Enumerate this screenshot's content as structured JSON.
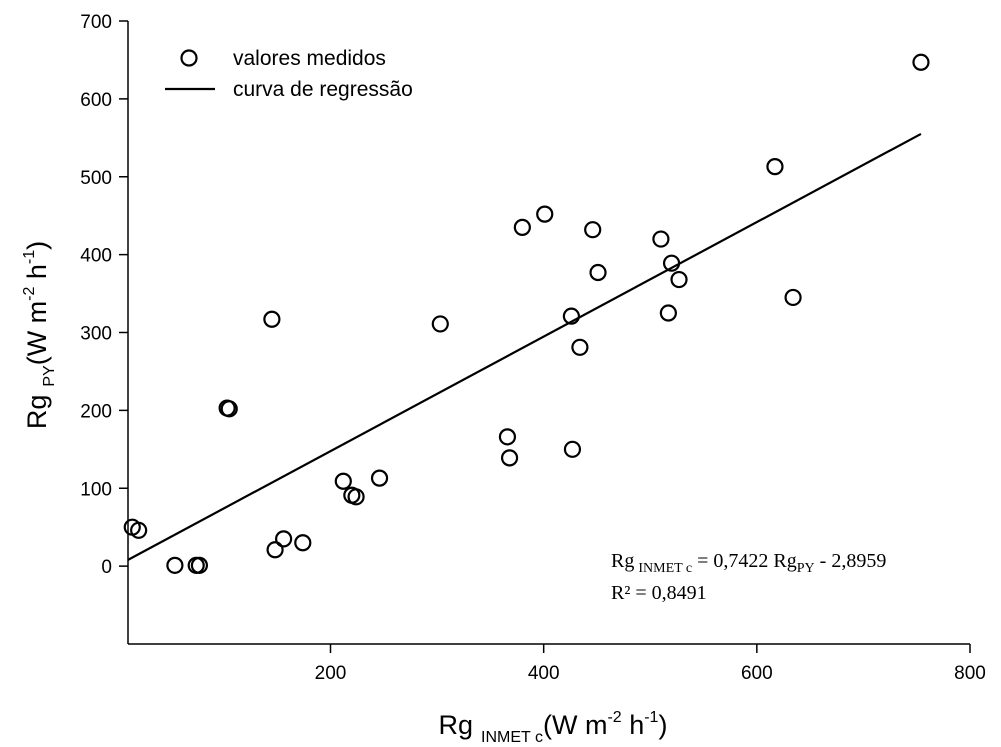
{
  "chart_data": {
    "type": "scatter",
    "xlim": [
      10,
      800
    ],
    "ylim": [
      -100,
      700
    ],
    "x_ticks": [
      200,
      400,
      600,
      800
    ],
    "y_ticks": [
      0,
      100,
      200,
      300,
      400,
      500,
      600,
      700
    ],
    "x_tick_labels": [
      "200",
      "400",
      "600",
      "800"
    ],
    "y_tick_labels": [
      "0",
      "100",
      "200",
      "300",
      "400",
      "500",
      "600",
      "700"
    ],
    "xlabel": {
      "base": "Rg",
      "sub": "INMET c",
      "mid": "(W m",
      "sup1": "-2",
      "mid2": " h",
      "sup2": "-1",
      "end": ")"
    },
    "ylabel": {
      "base": "Rg",
      "sub": "PY",
      "mid": "(W m",
      "sup1": "-2",
      "mid2": " h",
      "sup2": "-1",
      "end": ")"
    },
    "legend": {
      "position": "top-left",
      "markers_label": "valores medidos",
      "line_label": "curva de regressão"
    },
    "series": [
      {
        "name": "valores medidos",
        "marker": "open-circle",
        "points": [
          [
            14,
            50
          ],
          [
            20,
            46
          ],
          [
            54,
            1
          ],
          [
            74,
            1
          ],
          [
            77,
            1
          ],
          [
            103,
            203
          ],
          [
            105,
            202
          ],
          [
            145,
            317
          ],
          [
            148,
            21
          ],
          [
            156,
            35
          ],
          [
            174,
            30
          ],
          [
            212,
            109
          ],
          [
            220,
            91
          ],
          [
            224,
            89
          ],
          [
            246,
            113
          ],
          [
            303,
            311
          ],
          [
            366,
            166
          ],
          [
            368,
            139
          ],
          [
            380,
            435
          ],
          [
            401,
            452
          ],
          [
            426,
            321
          ],
          [
            427,
            150
          ],
          [
            434,
            281
          ],
          [
            446,
            432
          ],
          [
            451,
            377
          ],
          [
            510,
            420
          ],
          [
            517,
            325
          ],
          [
            520,
            389
          ],
          [
            527,
            368
          ],
          [
            617,
            513
          ],
          [
            634,
            345
          ],
          [
            754,
            647
          ]
        ]
      },
      {
        "name": "curva de regressão",
        "type": "line",
        "points": [
          [
            10,
            8
          ],
          [
            754,
            555
          ]
        ]
      }
    ],
    "annotation": {
      "eq_base1": "Rg",
      "eq_sub1": "INMET c",
      "eq_mid": " = 0,7422 Rg",
      "eq_sub2": "PY",
      "eq_end": " - 2,8959",
      "r2": "R² = 0,8491"
    }
  }
}
